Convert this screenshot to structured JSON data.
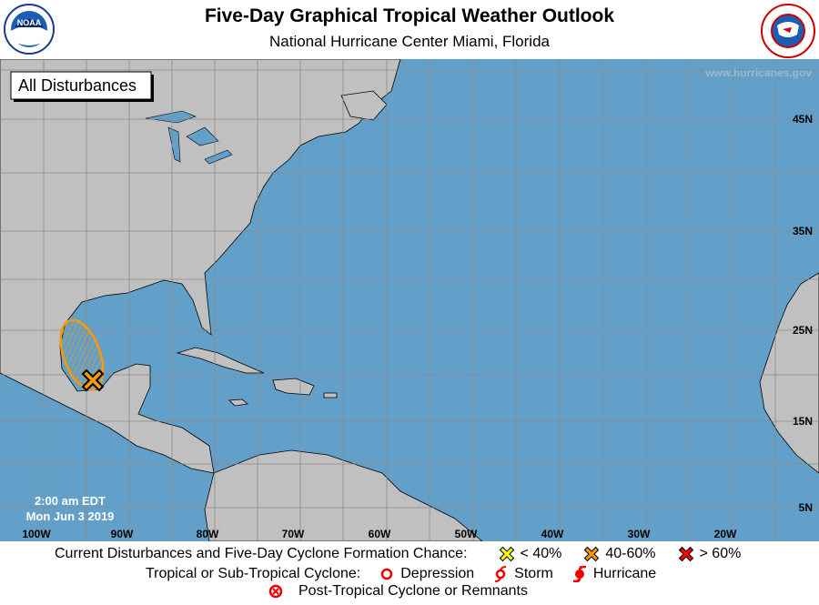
{
  "header": {
    "title": "Five-Day Graphical Tropical Weather Outlook",
    "subtitle": "National Hurricane Center  Miami, Florida",
    "left_logo": "NOAA",
    "right_logo": "National Weather Service"
  },
  "map": {
    "website": "www.hurricanes.gov",
    "view_label": "All Disturbances",
    "time": "2:00 am EDT",
    "date": "Mon Jun 3 2019",
    "lon_labels": [
      "100W",
      "90W",
      "80W",
      "70W",
      "60W",
      "50W",
      "40W",
      "30W",
      "20W"
    ],
    "lat_labels": [
      "45N",
      "35N",
      "25N",
      "15N",
      "5N"
    ],
    "colors": {
      "ocean": "#62a0c9",
      "land": "#c0c0c0",
      "disturbance": "#ff9900"
    },
    "disturbances": [
      {
        "location": "Bay of Campeche / southwestern Gulf of Mexico",
        "chance_category": "40-60%"
      }
    ]
  },
  "legend": {
    "row1_label": "Current Disturbances and Five-Day Cyclone Formation Chance:",
    "low": "< 40%",
    "mid": "40-60%",
    "high": "> 60%",
    "row2_label": "Tropical or Sub-Tropical Cyclone:",
    "depression": "Depression",
    "storm": "Storm",
    "hurricane": "Hurricane",
    "row3_label": "Post-Tropical Cyclone or Remnants",
    "colors": {
      "low": "#ffff00",
      "mid": "#ff9900",
      "high": "#ff0000"
    }
  }
}
